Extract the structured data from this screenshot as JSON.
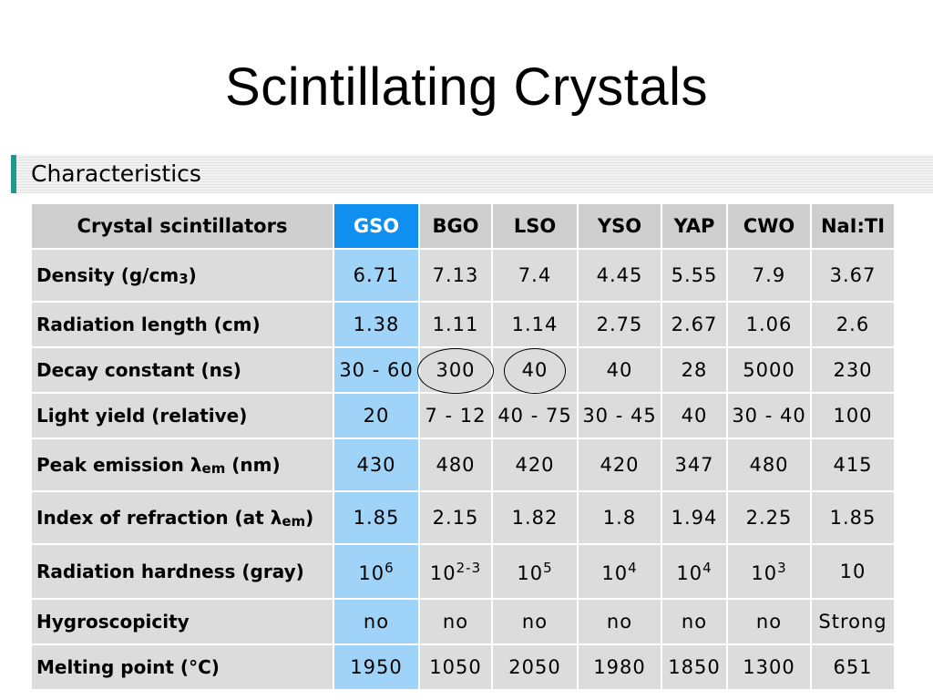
{
  "slide": {
    "title": "Scintillating  Crystals",
    "section": "Characteristics"
  },
  "table": {
    "corner": "Crystal scintillators",
    "columns": [
      "GSO",
      "BGO",
      "LSO",
      "YSO",
      "YAP",
      "CWO",
      "NaI:TI"
    ],
    "highlight_color": "#0f8ff0",
    "rows": [
      {
        "label": "Density (g/cm",
        "label_sub": "3",
        "label_after": ")",
        "height": 56,
        "values": [
          {
            "v": "6.71"
          },
          {
            "v": "7.13"
          },
          {
            "v": "7.4"
          },
          {
            "v": "4.45"
          },
          {
            "v": "5.55"
          },
          {
            "v": "7.9"
          },
          {
            "v": "3.67"
          }
        ]
      },
      {
        "label": "Radiation length (cm)",
        "height": 48,
        "values": [
          {
            "v": "1.38"
          },
          {
            "v": "1.11"
          },
          {
            "v": "1.14"
          },
          {
            "v": "2.75"
          },
          {
            "v": "2.67"
          },
          {
            "v": "1.06"
          },
          {
            "v": "2.6"
          }
        ]
      },
      {
        "label": "Decay constant (ns)",
        "height": 48,
        "values": [
          {
            "v": "30 - 60"
          },
          {
            "v": "300",
            "circled": true
          },
          {
            "v": "40",
            "circled": true
          },
          {
            "v": "40"
          },
          {
            "v": "28"
          },
          {
            "v": "5000"
          },
          {
            "v": "230"
          }
        ]
      },
      {
        "label": "Light yield (relative)",
        "height": 48,
        "values": [
          {
            "v": "20"
          },
          {
            "v": "7 - 12"
          },
          {
            "v": "40 - 75"
          },
          {
            "v": "30 - 45"
          },
          {
            "v": "40"
          },
          {
            "v": "30 - 40"
          },
          {
            "v": "100"
          }
        ]
      },
      {
        "label": "Peak emission λ",
        "label_sub": "em",
        "label_after": " (nm)",
        "height": 56,
        "values": [
          {
            "v": "430"
          },
          {
            "v": "480"
          },
          {
            "v": "420"
          },
          {
            "v": "420"
          },
          {
            "v": "347"
          },
          {
            "v": "480"
          },
          {
            "v": "415"
          }
        ]
      },
      {
        "label": "Index of refraction (at λ",
        "label_sub": "em",
        "label_after": ")",
        "height": 56,
        "values": [
          {
            "v": "1.85"
          },
          {
            "v": "2.15"
          },
          {
            "v": "1.82"
          },
          {
            "v": "1.8"
          },
          {
            "v": "1.94"
          },
          {
            "v": "2.25"
          },
          {
            "v": "1.85"
          }
        ]
      },
      {
        "label": "Radiation hardness (gray)",
        "height": 58,
        "values": [
          {
            "v": "10",
            "sup": "6"
          },
          {
            "v": "10",
            "sup": "2-3"
          },
          {
            "v": "10",
            "sup": "5"
          },
          {
            "v": "10",
            "sup": "4"
          },
          {
            "v": "10",
            "sup": "4"
          },
          {
            "v": "10",
            "sup": "3"
          },
          {
            "v": "10"
          }
        ]
      },
      {
        "label": "Hygroscopicity",
        "height": 48,
        "values": [
          {
            "v": "no"
          },
          {
            "v": "no"
          },
          {
            "v": "no"
          },
          {
            "v": "no"
          },
          {
            "v": "no"
          },
          {
            "v": "no"
          },
          {
            "v": "Strong"
          }
        ]
      },
      {
        "label": "Melting point (°C)",
        "height": 48,
        "values": [
          {
            "v": "1950"
          },
          {
            "v": "1050"
          },
          {
            "v": "2050"
          },
          {
            "v": "1980"
          },
          {
            "v": "1850"
          },
          {
            "v": "1300"
          },
          {
            "v": "651"
          }
        ]
      }
    ]
  }
}
